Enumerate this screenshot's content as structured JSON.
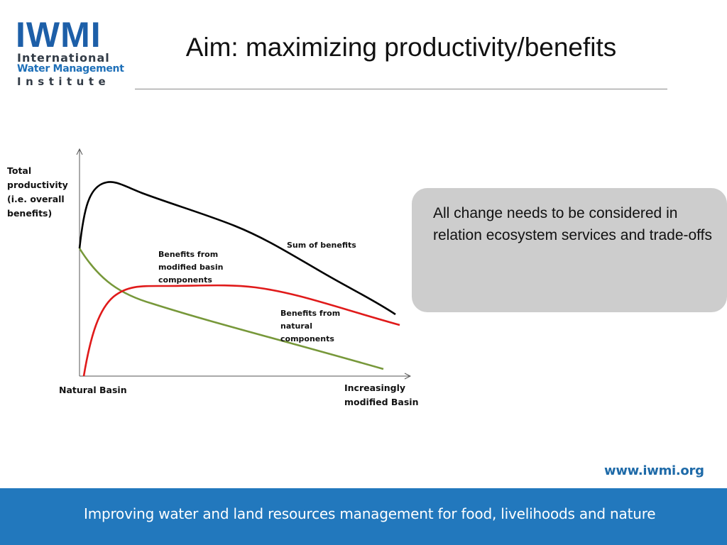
{
  "logo": {
    "mark": "IWMI",
    "line1": "International",
    "line2": "Water Management",
    "line3": "Institute"
  },
  "title": "Aim: maximizing productivity/benefits",
  "diagram": {
    "y_axis_label": "Total productivity (i.e. overall benefits)",
    "x_axis_start_label": "Natural Basin",
    "x_axis_end_label": "Increasingly modified Basin",
    "curves": [
      {
        "label": "Sum of benefits",
        "color": "#000000"
      },
      {
        "label": "Benefits from modified basin components",
        "color": "#e01a1a"
      },
      {
        "label": "Benefits from natural components",
        "color": "#77983a"
      }
    ]
  },
  "callout": {
    "text": "All change needs to be considered in relation ecosystem services and trade-offs"
  },
  "footer": {
    "url": "www.iwmi.org",
    "tagline": "Improving water and land resources management for food, livelihoods and nature",
    "bar_color": "#2278bd"
  }
}
